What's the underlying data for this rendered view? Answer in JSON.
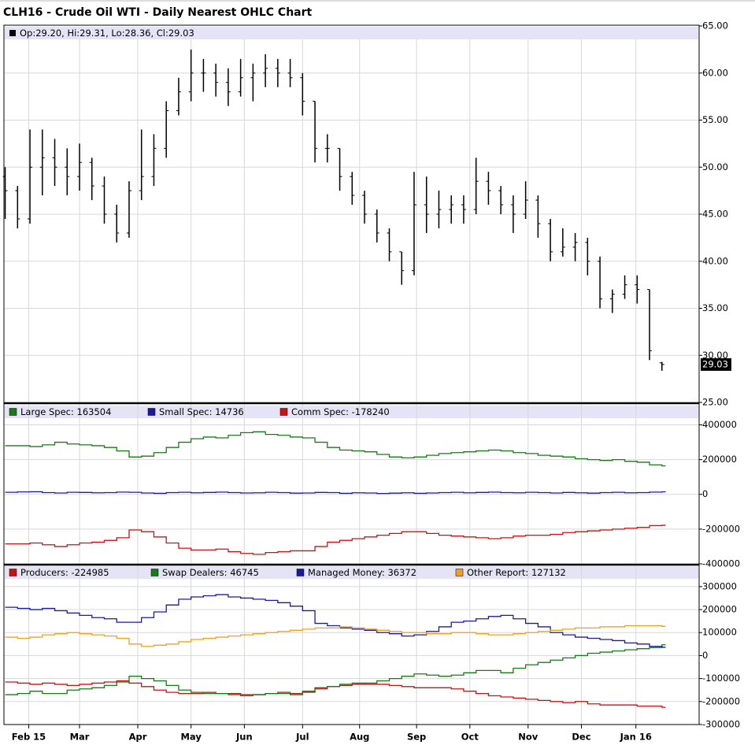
{
  "chart_data": [
    {
      "type": "ohlc",
      "title": "CLH16 - Crude Oil WTI - Daily Nearest OHLC Chart",
      "legend_text": "Op:29.20, Hi:29.31, Lo:28.36, Cl:29.03",
      "last_label": "29.03",
      "color": "#000000",
      "x": [
        0,
        1,
        2,
        3,
        4,
        5,
        6,
        7,
        8,
        9,
        10,
        11,
        12,
        13,
        14,
        15,
        16,
        17,
        18,
        19,
        20,
        21,
        22,
        23,
        24,
        25,
        26,
        27,
        28,
        29,
        30,
        31,
        32,
        33,
        34,
        35,
        36,
        37,
        38,
        39,
        40,
        41,
        42,
        43,
        44,
        45,
        46,
        47,
        48,
        49,
        50,
        51,
        52,
        53
      ],
      "open": [
        49,
        47.5,
        44.5,
        50,
        51,
        50,
        49,
        50.5,
        48,
        45,
        43,
        47.5,
        49,
        52,
        56,
        58,
        60,
        60,
        59,
        58,
        59.5,
        60,
        60.5,
        60,
        59.5,
        57,
        52,
        52,
        49,
        47,
        45,
        43,
        41,
        39,
        46,
        45,
        45.5,
        46,
        45.5,
        48.5,
        47.5,
        46,
        45,
        46.5,
        44,
        41,
        41.5,
        42,
        40,
        36,
        36.5,
        37.5,
        37,
        29.2
      ],
      "high": [
        50,
        48,
        54,
        54,
        53,
        52,
        52.5,
        51,
        49,
        46,
        48.5,
        54,
        53.5,
        57,
        59.5,
        62.5,
        61.5,
        61,
        60.5,
        61.5,
        61,
        62,
        61.5,
        61.5,
        60,
        57,
        53.5,
        52,
        49.5,
        47.5,
        45.5,
        43.5,
        41,
        49.5,
        49,
        47.5,
        47,
        47,
        51,
        49.5,
        48,
        47,
        48.5,
        47,
        44.5,
        43.5,
        43,
        42.5,
        40.5,
        37,
        38.5,
        38.5,
        37,
        29.31
      ],
      "low": [
        44.5,
        43.5,
        44,
        47,
        48,
        47,
        47.5,
        46.5,
        44,
        42,
        42.5,
        46.5,
        48,
        51,
        55.5,
        57,
        58,
        57.5,
        56.5,
        57.5,
        57,
        58.5,
        58.5,
        58.5,
        55.5,
        50.5,
        50.5,
        47.5,
        46,
        44,
        42,
        40,
        37.5,
        38.5,
        43,
        43.5,
        44,
        44,
        45,
        46,
        45,
        43,
        44.5,
        42.5,
        40,
        40.5,
        40,
        38.5,
        35,
        34.5,
        36,
        35.5,
        29.5,
        28.36
      ],
      "close": [
        47.5,
        44.5,
        50,
        51,
        50,
        49,
        50.5,
        48,
        45,
        43,
        47.5,
        49,
        52,
        56,
        58,
        60,
        60,
        59,
        58,
        59.5,
        60,
        60.5,
        60,
        59.5,
        57,
        52,
        52,
        49,
        47,
        45,
        43,
        41,
        39,
        46,
        45,
        45.5,
        46,
        45.5,
        48.5,
        47.5,
        46,
        45,
        46.5,
        44,
        41,
        41.5,
        42,
        40,
        36,
        36.5,
        37.5,
        37,
        30.5,
        29.03
      ],
      "xlim": [
        -0.1,
        56
      ],
      "ylim": [
        25,
        65
      ],
      "yticks": [
        {
          "value": 25,
          "label": "25.00"
        },
        {
          "value": 30,
          "label": "30.00"
        },
        {
          "value": 35,
          "label": "35.00"
        },
        {
          "value": 40,
          "label": "40.00"
        },
        {
          "value": 45,
          "label": "45.00"
        },
        {
          "value": 50,
          "label": "50.00"
        },
        {
          "value": 55,
          "label": "55.00"
        },
        {
          "value": 60,
          "label": "60.00"
        },
        {
          "value": 65,
          "label": "65.00"
        }
      ],
      "grid": true
    },
    {
      "type": "line",
      "step": true,
      "xlim": [
        -0.1,
        56
      ],
      "ylim": [
        -400000,
        520000
      ],
      "yticks": [
        -400000,
        -200000,
        0,
        200000,
        400000
      ],
      "grid": true,
      "x": [
        0,
        1,
        2,
        3,
        4,
        5,
        6,
        7,
        8,
        9,
        10,
        11,
        12,
        13,
        14,
        15,
        16,
        17,
        18,
        19,
        20,
        21,
        22,
        23,
        24,
        25,
        26,
        27,
        28,
        29,
        30,
        31,
        32,
        33,
        34,
        35,
        36,
        37,
        38,
        39,
        40,
        41,
        42,
        43,
        44,
        45,
        46,
        47,
        48,
        49,
        50,
        51,
        52,
        53
      ],
      "series": [
        {
          "name": "Large Spec: 163504",
          "color": "#1a7a1a",
          "values": [
            280000,
            280000,
            275000,
            285000,
            300000,
            290000,
            285000,
            280000,
            270000,
            250000,
            215000,
            220000,
            240000,
            270000,
            300000,
            320000,
            330000,
            325000,
            340000,
            355000,
            360000,
            345000,
            340000,
            330000,
            325000,
            300000,
            270000,
            255000,
            250000,
            245000,
            230000,
            215000,
            210000,
            215000,
            225000,
            235000,
            240000,
            245000,
            250000,
            255000,
            250000,
            240000,
            235000,
            225000,
            220000,
            215000,
            205000,
            200000,
            195000,
            200000,
            190000,
            185000,
            170000,
            163504
          ]
        },
        {
          "name": "Small Spec: 14736",
          "color": "#1a1aa0",
          "values": [
            12000,
            14000,
            15000,
            10000,
            8000,
            12000,
            11000,
            9000,
            10000,
            13000,
            12000,
            8000,
            6000,
            10000,
            12000,
            9000,
            11000,
            13000,
            10000,
            8000,
            9000,
            12000,
            10000,
            7000,
            8000,
            11000,
            10000,
            6000,
            9000,
            8000,
            5000,
            7000,
            9000,
            6000,
            8000,
            10000,
            12000,
            9000,
            11000,
            13000,
            10000,
            9000,
            12000,
            10000,
            8000,
            11000,
            9000,
            7000,
            10000,
            12000,
            9000,
            10000,
            13000,
            14736
          ]
        },
        {
          "name": "Comm Spec: -178240",
          "color": "#cc1111",
          "values": [
            -285000,
            -285000,
            -280000,
            -290000,
            -300000,
            -290000,
            -280000,
            -275000,
            -265000,
            -250000,
            -205000,
            -215000,
            -245000,
            -280000,
            -310000,
            -320000,
            -320000,
            -315000,
            -330000,
            -340000,
            -345000,
            -335000,
            -330000,
            -325000,
            -325000,
            -300000,
            -275000,
            -265000,
            -255000,
            -245000,
            -235000,
            -225000,
            -215000,
            -215000,
            -225000,
            -235000,
            -240000,
            -245000,
            -250000,
            -255000,
            -250000,
            -240000,
            -235000,
            -235000,
            -230000,
            -220000,
            -215000,
            -210000,
            -205000,
            -200000,
            -195000,
            -190000,
            -180000,
            -178240
          ]
        }
      ]
    },
    {
      "type": "line",
      "step": true,
      "xlim": [
        -0.1,
        56
      ],
      "ylim": [
        -300000,
        392000
      ],
      "yticks": [
        -300000,
        -200000,
        -100000,
        0,
        100000,
        200000,
        300000
      ],
      "grid": true,
      "xticks": [
        {
          "value": 1.9,
          "label": "Feb 15"
        },
        {
          "value": 6.0,
          "label": "Mar"
        },
        {
          "value": 10.7,
          "label": "Apr"
        },
        {
          "value": 15.0,
          "label": "May"
        },
        {
          "value": 19.3,
          "label": "Jun"
        },
        {
          "value": 24.0,
          "label": "Jul"
        },
        {
          "value": 28.6,
          "label": "Aug"
        },
        {
          "value": 33.2,
          "label": "Sep"
        },
        {
          "value": 37.5,
          "label": "Oct"
        },
        {
          "value": 42.2,
          "label": "Nov"
        },
        {
          "value": 46.5,
          "label": "Dec"
        },
        {
          "value": 50.9,
          "label": "Jan 16"
        }
      ],
      "x": [
        0,
        1,
        2,
        3,
        4,
        5,
        6,
        7,
        8,
        9,
        10,
        11,
        12,
        13,
        14,
        15,
        16,
        17,
        18,
        19,
        20,
        21,
        22,
        23,
        24,
        25,
        26,
        27,
        28,
        29,
        30,
        31,
        32,
        33,
        34,
        35,
        36,
        37,
        38,
        39,
        40,
        41,
        42,
        43,
        44,
        45,
        46,
        47,
        48,
        49,
        50,
        51,
        52,
        53
      ],
      "series": [
        {
          "name": "Producers: -224985",
          "color": "#cc1111",
          "values": [
            -115000,
            -120000,
            -125000,
            -120000,
            -125000,
            -130000,
            -125000,
            -120000,
            -115000,
            -110000,
            -120000,
            -135000,
            -150000,
            -160000,
            -165000,
            -165000,
            -160000,
            -165000,
            -165000,
            -170000,
            -170000,
            -165000,
            -160000,
            -165000,
            -155000,
            -145000,
            -135000,
            -130000,
            -125000,
            -125000,
            -125000,
            -130000,
            -135000,
            -140000,
            -140000,
            -140000,
            -145000,
            -155000,
            -165000,
            -175000,
            -180000,
            -185000,
            -190000,
            -195000,
            -200000,
            -205000,
            -200000,
            -210000,
            -215000,
            -215000,
            -215000,
            -220000,
            -220000,
            -224985
          ]
        },
        {
          "name": "Swap Dealers: 46745",
          "color": "#1a7a1a",
          "values": [
            -170000,
            -165000,
            -155000,
            -165000,
            -165000,
            -150000,
            -145000,
            -140000,
            -130000,
            -115000,
            -90000,
            -100000,
            -110000,
            -130000,
            -150000,
            -160000,
            -165000,
            -165000,
            -170000,
            -175000,
            -170000,
            -165000,
            -165000,
            -170000,
            -160000,
            -140000,
            -135000,
            -125000,
            -120000,
            -120000,
            -110000,
            -100000,
            -90000,
            -80000,
            -85000,
            -90000,
            -85000,
            -75000,
            -65000,
            -65000,
            -75000,
            -55000,
            -40000,
            -30000,
            -20000,
            -10000,
            0,
            10000,
            15000,
            20000,
            25000,
            30000,
            35000,
            46745
          ]
        },
        {
          "name": "Managed Money: 36372",
          "color": "#1a1aa0",
          "values": [
            210000,
            205000,
            200000,
            205000,
            195000,
            185000,
            175000,
            165000,
            160000,
            145000,
            145000,
            165000,
            190000,
            220000,
            245000,
            255000,
            260000,
            265000,
            255000,
            250000,
            245000,
            240000,
            230000,
            215000,
            195000,
            140000,
            130000,
            120000,
            115000,
            110000,
            100000,
            95000,
            85000,
            90000,
            105000,
            125000,
            145000,
            150000,
            160000,
            170000,
            175000,
            160000,
            140000,
            125000,
            100000,
            90000,
            80000,
            75000,
            70000,
            65000,
            55000,
            50000,
            40000,
            36372
          ]
        },
        {
          "name": "Other Report: 127132",
          "color": "#f0a020",
          "values": [
            80000,
            75000,
            80000,
            90000,
            95000,
            100000,
            95000,
            90000,
            85000,
            75000,
            50000,
            40000,
            45000,
            50000,
            60000,
            70000,
            75000,
            80000,
            85000,
            90000,
            95000,
            100000,
            105000,
            110000,
            115000,
            120000,
            120000,
            125000,
            120000,
            115000,
            110000,
            105000,
            100000,
            100000,
            95000,
            95000,
            100000,
            100000,
            95000,
            90000,
            90000,
            95000,
            100000,
            105000,
            110000,
            115000,
            120000,
            120000,
            125000,
            125000,
            130000,
            130000,
            130000,
            127132
          ]
        }
      ]
    }
  ]
}
